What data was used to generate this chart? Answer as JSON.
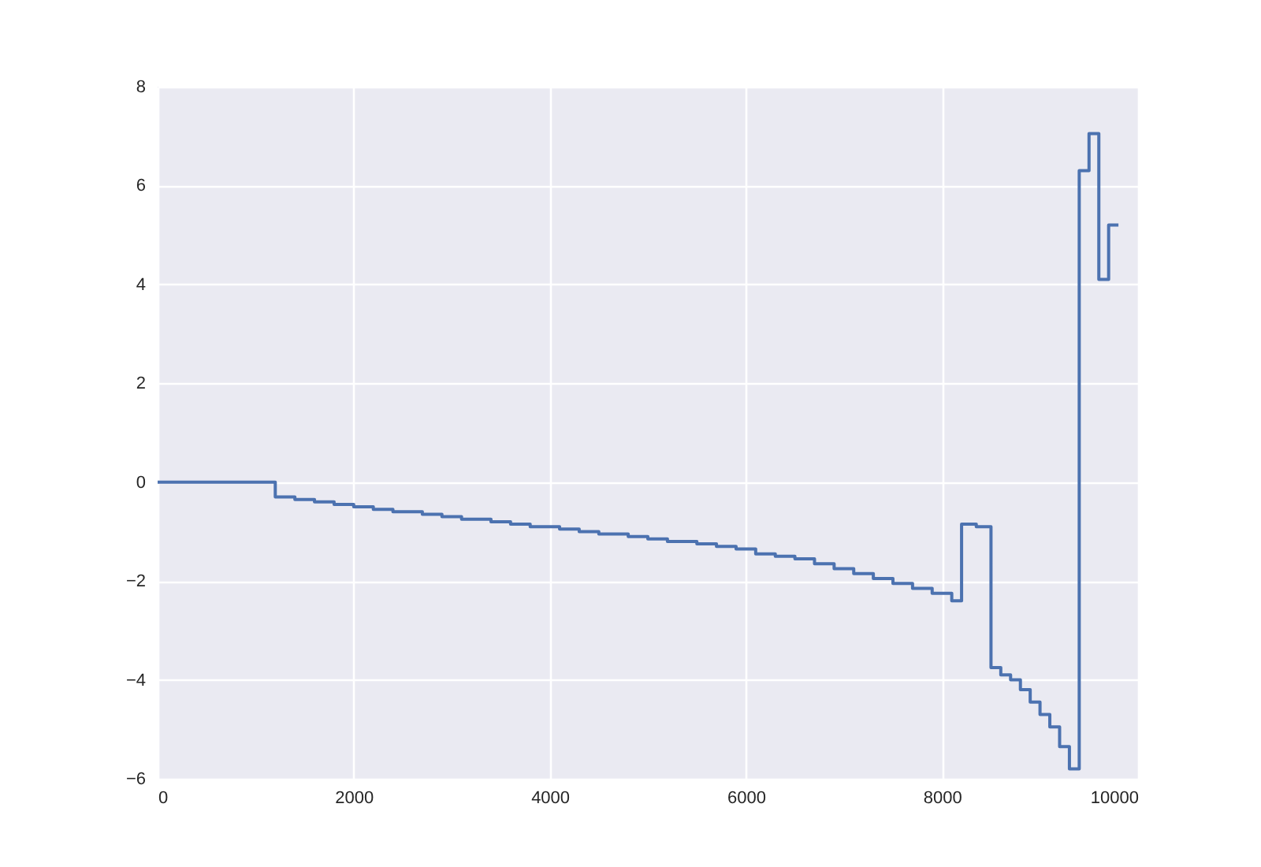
{
  "chart_data": {
    "type": "step",
    "x": [
      0,
      1200,
      1400,
      1600,
      1800,
      2000,
      2200,
      2400,
      2700,
      2900,
      3100,
      3400,
      3600,
      3800,
      4100,
      4300,
      4500,
      4800,
      5000,
      5200,
      5500,
      5700,
      5900,
      6100,
      6300,
      6500,
      6700,
      6900,
      7100,
      7300,
      7500,
      7700,
      7900,
      8100,
      8200,
      8350,
      8500,
      8600,
      8700,
      8800,
      8900,
      9000,
      9100,
      9200,
      9300,
      9400,
      9500,
      9600,
      9700,
      9800
    ],
    "series": [
      {
        "color": "#4c72b0",
        "values": [
          0,
          -0.3,
          -0.35,
          -0.4,
          -0.45,
          -0.5,
          -0.55,
          -0.6,
          -0.65,
          -0.7,
          -0.75,
          -0.8,
          -0.85,
          -0.9,
          -0.95,
          -1.0,
          -1.05,
          -1.1,
          -1.15,
          -1.2,
          -1.25,
          -1.3,
          -1.35,
          -1.45,
          -1.5,
          -1.55,
          -1.65,
          -1.75,
          -1.85,
          -1.95,
          -2.05,
          -2.15,
          -2.25,
          -2.4,
          -0.85,
          -0.9,
          -3.75,
          -3.9,
          -4.0,
          -4.2,
          -4.45,
          -4.7,
          -4.95,
          -5.35,
          -5.8,
          6.3,
          7.05,
          4.1,
          5.2,
          5.2
        ]
      }
    ],
    "xlim": [
      0,
      10000
    ],
    "xticks": [
      0,
      2000,
      4000,
      6000,
      8000,
      10000
    ],
    "ylim": [
      -6,
      8
    ],
    "yticks": [
      -6,
      -4,
      -2,
      0,
      2,
      4,
      6,
      8
    ],
    "grid": true,
    "line_style": "solid",
    "marker": "none"
  }
}
